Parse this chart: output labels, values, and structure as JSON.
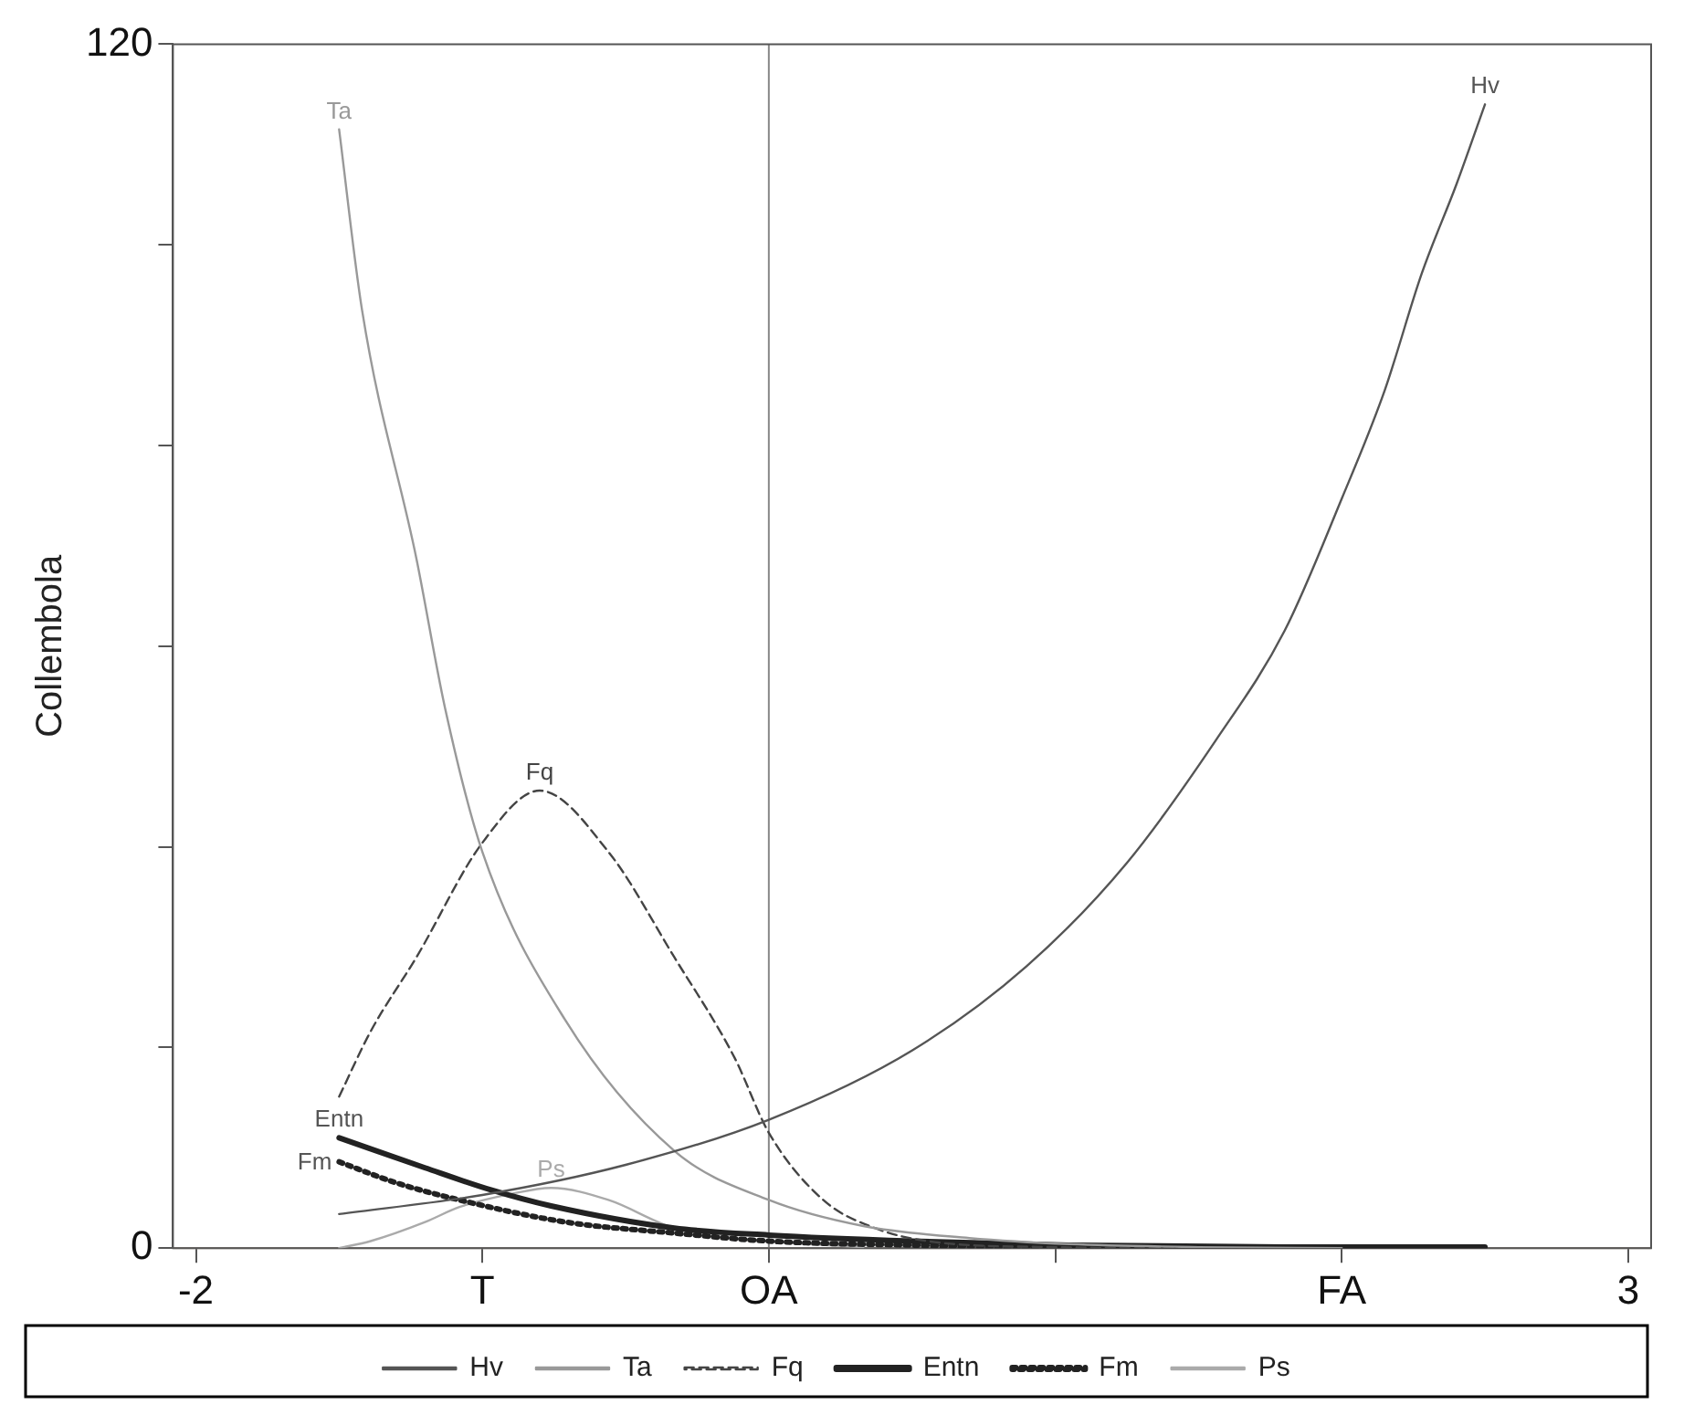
{
  "chart_data": {
    "type": "line",
    "ylabel": "Collembola",
    "xlim": [
      -2.08,
      3.08
    ],
    "xticks": [
      {
        "value": -2,
        "label": "-2"
      },
      {
        "value": -1,
        "label": "T"
      },
      {
        "value": 0,
        "label": "OA"
      },
      {
        "value": 1,
        "label": null
      },
      {
        "value": 2,
        "label": "FA"
      },
      3
    ],
    "ylim": [
      0,
      120
    ],
    "yticks": [
      0,
      {
        "value": 20,
        "label": null
      },
      {
        "value": 40,
        "label": null
      },
      {
        "value": 60,
        "label": null
      },
      {
        "value": 80,
        "label": null
      },
      {
        "value": 100,
        "label": null
      },
      120
    ],
    "grid": false,
    "legend": "bottom",
    "marker": "none",
    "ref_lines": [
      {
        "axis": "x",
        "value": 0,
        "color": "#888888"
      },
      {
        "axis": "y",
        "value": 0,
        "color": "#c8b4aa"
      }
    ],
    "series": [
      {
        "name": "Hv",
        "color": "#555555",
        "line_style": "solid",
        "x": [
          -1.5,
          -1,
          -0.5,
          0,
          0.5,
          0.9,
          1.25,
          1.56,
          1.8,
          2,
          2.15,
          2.28,
          2.4,
          2.5
        ],
        "values": [
          3.4,
          5.3,
          8.3,
          12.8,
          19.7,
          28.1,
          38.4,
          50.6,
          61.5,
          74.7,
          85.5,
          97.2,
          106,
          114
        ]
      },
      {
        "name": "Ta",
        "color": "#999999",
        "line_style": "solid",
        "x": [
          -1.5,
          -1.42,
          -1.23,
          -1.13,
          -1,
          -0.71,
          -0.33,
          0,
          0.33,
          0.7,
          1.05,
          1.5,
          2
        ],
        "values": [
          111.5,
          93.5,
          68.7,
          53.8,
          39.5,
          22.7,
          9.7,
          4.8,
          2.2,
          1,
          0.4,
          0.1,
          0
        ]
      },
      {
        "name": "Fq",
        "color": "#444444",
        "line_style": "dashed",
        "x": [
          -1.5,
          -1.39,
          -1.23,
          -1,
          -0.8,
          -0.56,
          -0.33,
          -0.12,
          0,
          0.19,
          0.37,
          0.58,
          1,
          1.5,
          2
        ],
        "values": [
          15.1,
          21.6,
          29,
          40.4,
          45.6,
          39.5,
          29,
          19,
          11.5,
          4.8,
          2,
          0.6,
          0.1,
          0,
          0
        ]
      },
      {
        "name": "Entn",
        "color": "#222222",
        "line_style": "solid",
        "x": [
          -1.5,
          -1.2,
          -0.97,
          -0.76,
          -0.33,
          0,
          0.5,
          1.05,
          1.8,
          2.5
        ],
        "values": [
          11,
          8,
          5.8,
          4.2,
          2,
          1.3,
          0.7,
          0.3,
          0.1,
          0.1
        ]
      },
      {
        "name": "Fm",
        "color": "#222222",
        "line_style": "dotted",
        "x": [
          -1.5,
          -1.3,
          -1.08,
          -0.71,
          -0.33,
          0,
          0.5,
          1,
          1.8,
          2.5
        ],
        "values": [
          8.6,
          6.5,
          4.8,
          2.6,
          1.5,
          0.7,
          0.3,
          0.1,
          0,
          0
        ]
      },
      {
        "name": "Ps",
        "color": "#aaaaaa",
        "line_style": "solid",
        "x": [
          -1.5,
          -1.39,
          -1.2,
          -1.08,
          -0.9,
          -0.76,
          -0.56,
          -0.33,
          0,
          0.33
        ],
        "values": [
          0,
          0.7,
          2.6,
          4.1,
          5.4,
          6,
          4.8,
          2,
          0.7,
          0.1
        ]
      }
    ]
  }
}
